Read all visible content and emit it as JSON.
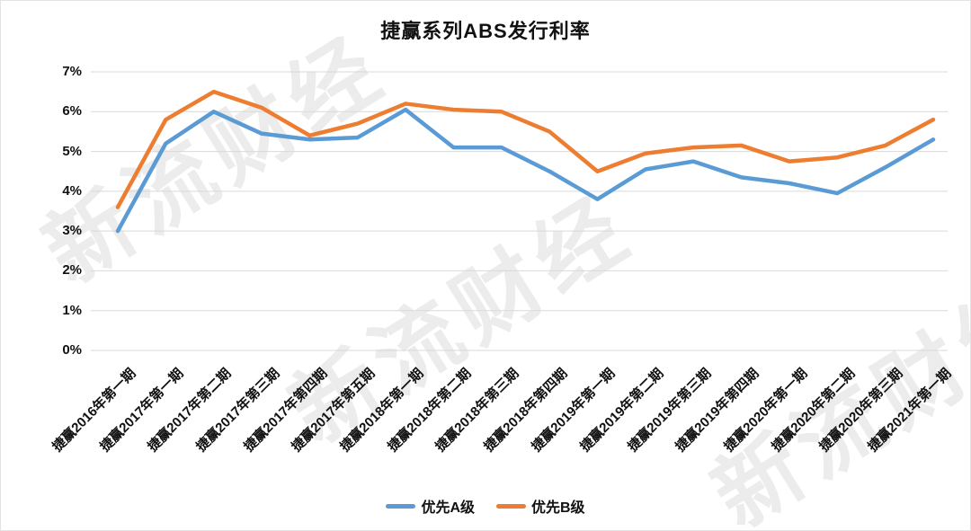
{
  "watermark": {
    "text": "新流财经"
  },
  "chart_data": {
    "type": "line",
    "title": "捷赢系列ABS发行利率",
    "categories": [
      "捷赢2016年第一期",
      "捷赢2017年第一期",
      "捷赢2017年第二期",
      "捷赢2017年第三期",
      "捷赢2017年第四期",
      "捷赢2017年第五期",
      "捷赢2018年第一期",
      "捷赢2018年第二期",
      "捷赢2018年第三期",
      "捷赢2018年第四期",
      "捷赢2019年第一期",
      "捷赢2019年第二期",
      "捷赢2019年第三期",
      "捷赢2019年第四期",
      "捷赢2020年第一期",
      "捷赢2020年第二期",
      "捷赢2020年第三期",
      "捷赢2021年第一期"
    ],
    "series": [
      {
        "name": "优先A级",
        "color": "#5B9BD5",
        "values": [
          3.0,
          5.2,
          6.0,
          5.45,
          5.3,
          5.35,
          6.05,
          5.1,
          5.1,
          4.5,
          3.8,
          4.55,
          4.75,
          4.35,
          4.2,
          3.95,
          4.6,
          5.3
        ]
      },
      {
        "name": "优先B级",
        "color": "#ED7D31",
        "values": [
          3.6,
          5.8,
          6.5,
          6.1,
          5.4,
          5.7,
          6.2,
          6.05,
          6.0,
          5.5,
          4.5,
          4.95,
          5.1,
          5.15,
          4.75,
          4.85,
          5.15,
          5.8
        ]
      }
    ],
    "ylim": [
      0,
      7
    ],
    "ytick_labels": [
      "0%",
      "1%",
      "2%",
      "3%",
      "4%",
      "5%",
      "6%",
      "7%"
    ],
    "xlabel": "",
    "ylabel": "",
    "grid": true,
    "legend_position": "bottom",
    "gridline_color": "#d9d9d9",
    "axis_text_color": "#111111"
  }
}
